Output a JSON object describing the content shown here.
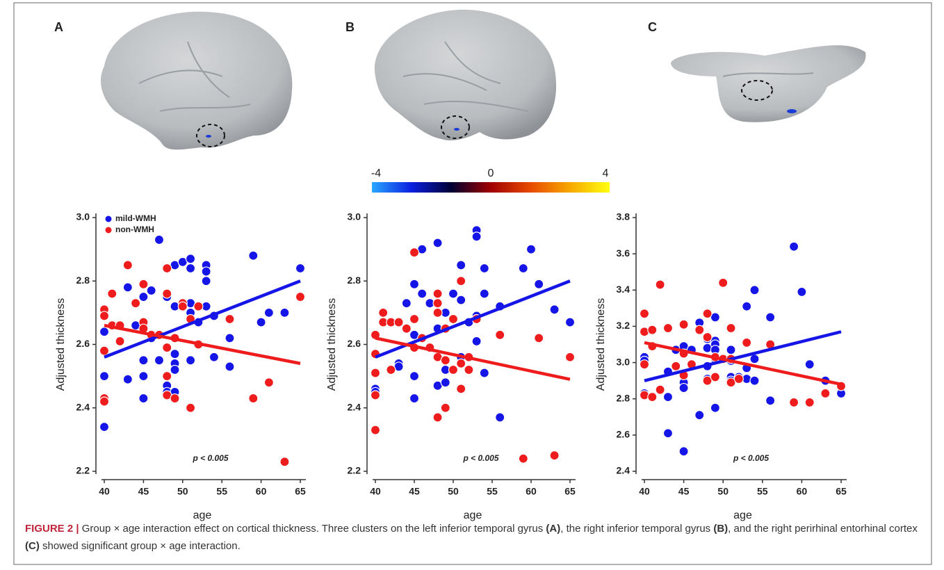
{
  "chart_data": [
    {
      "type": "scatter",
      "panel_label": "A",
      "xlabel": "age",
      "ylabel": "Adjusted thickness",
      "annotation": "p < 0.005",
      "xlim": [
        40,
        65
      ],
      "ylim": [
        2.2,
        3.0
      ],
      "xticks": [
        40,
        45,
        50,
        55,
        60,
        65
      ],
      "yticks": [
        2.2,
        2.4,
        2.6,
        2.8,
        {
          "value": 3,
          "label": "3.0"
        }
      ],
      "legend": "upper left",
      "series": [
        {
          "name": "mild-WMH",
          "color": "#1515e8",
          "x": [
            40,
            40,
            40,
            43,
            43,
            44,
            45,
            45,
            45,
            45,
            46,
            46,
            47,
            47,
            48,
            48,
            48,
            49,
            49,
            49,
            49,
            49,
            49,
            50,
            51,
            51,
            51,
            51,
            51,
            52,
            53,
            53,
            53,
            53,
            54,
            54,
            56,
            56,
            59,
            60,
            61,
            63,
            65
          ],
          "values": [
            2.64,
            2.5,
            2.34,
            2.78,
            2.49,
            2.66,
            2.75,
            2.55,
            2.5,
            2.43,
            2.77,
            2.62,
            2.93,
            2.55,
            2.75,
            2.47,
            2.45,
            2.85,
            2.72,
            2.57,
            2.54,
            2.52,
            2.45,
            2.86,
            2.87,
            2.84,
            2.73,
            2.7,
            2.55,
            2.67,
            2.85,
            2.83,
            2.8,
            2.72,
            2.69,
            2.56,
            2.62,
            2.53,
            2.88,
            2.67,
            2.7,
            2.7,
            2.84
          ],
          "fit": {
            "x": [
              40,
              65
            ],
            "values": [
              2.56,
              2.8
            ]
          }
        },
        {
          "name": "non-WMH",
          "color": "#ee1c1c",
          "x": [
            40,
            40,
            40,
            40,
            40,
            41,
            41,
            42,
            42,
            43,
            44,
            45,
            45,
            45,
            46,
            47,
            48,
            48,
            48,
            48,
            48,
            49,
            49,
            50,
            50,
            51,
            51,
            52,
            52,
            56,
            59,
            61,
            63,
            65
          ],
          "values": [
            2.71,
            2.69,
            2.58,
            2.43,
            2.42,
            2.76,
            2.66,
            2.66,
            2.61,
            2.85,
            2.73,
            2.79,
            2.67,
            2.65,
            2.63,
            2.63,
            2.84,
            2.76,
            2.59,
            2.5,
            2.44,
            2.62,
            2.43,
            2.73,
            2.72,
            2.68,
            2.4,
            2.72,
            2.6,
            2.68,
            2.43,
            2.48,
            2.23,
            2.75
          ],
          "fit": {
            "x": [
              40,
              65
            ],
            "values": [
              2.66,
              2.54
            ]
          }
        }
      ]
    },
    {
      "type": "scatter",
      "panel_label": "B",
      "xlabel": "age",
      "ylabel": "Adjusted thickness",
      "annotation": "p < 0.005",
      "xlim": [
        40,
        65
      ],
      "ylim": [
        2.2,
        3.0
      ],
      "xticks": [
        40,
        45,
        50,
        55,
        60,
        65
      ],
      "yticks": [
        2.2,
        2.4,
        2.6,
        2.8,
        {
          "value": 3,
          "label": "3.0"
        }
      ],
      "series": [
        {
          "color": "#1515e8",
          "x": [
            40,
            40,
            40,
            43,
            43,
            44,
            45,
            45,
            45,
            45,
            46,
            46,
            47,
            48,
            48,
            48,
            49,
            49,
            49,
            49,
            50,
            51,
            51,
            51,
            52,
            53,
            53,
            53,
            53,
            54,
            54,
            54,
            56,
            56,
            59,
            60,
            61,
            63,
            65
          ],
          "values": [
            2.46,
            2.45,
            2.57,
            2.54,
            2.53,
            2.73,
            2.79,
            2.63,
            2.5,
            2.43,
            2.9,
            2.76,
            2.73,
            2.92,
            2.65,
            2.47,
            2.7,
            2.52,
            2.48,
            2.4,
            2.76,
            2.85,
            2.74,
            2.56,
            2.67,
            2.96,
            2.94,
            2.69,
            2.61,
            2.84,
            2.76,
            2.51,
            2.72,
            2.37,
            2.84,
            2.9,
            2.79,
            2.71,
            2.67
          ],
          "fit": {
            "x": [
              40,
              65
            ],
            "values": [
              2.56,
              2.8
            ]
          }
        },
        {
          "color": "#ee1c1c",
          "x": [
            40,
            40,
            40,
            40,
            40,
            41,
            41,
            42,
            42,
            43,
            44,
            45,
            45,
            45,
            46,
            47,
            48,
            48,
            48,
            48,
            48,
            49,
            49,
            49,
            50,
            50,
            51,
            51,
            51,
            52,
            52,
            53,
            56,
            59,
            61,
            63,
            65
          ],
          "values": [
            2.63,
            2.57,
            2.51,
            2.44,
            2.33,
            2.7,
            2.67,
            2.67,
            2.52,
            2.67,
            2.65,
            2.89,
            2.68,
            2.59,
            2.62,
            2.59,
            2.76,
            2.73,
            2.7,
            2.56,
            2.37,
            2.65,
            2.55,
            2.4,
            2.68,
            2.52,
            2.8,
            2.54,
            2.46,
            2.56,
            2.52,
            2.68,
            2.63,
            2.24,
            2.62,
            2.25,
            2.56
          ],
          "fit": {
            "x": [
              40,
              65
            ],
            "values": [
              2.62,
              2.49
            ]
          }
        }
      ]
    },
    {
      "type": "scatter",
      "panel_label": "C",
      "xlabel": "age",
      "ylabel": "Adjusted thickness",
      "annotation": "p < 0.005",
      "xlim": [
        40,
        65
      ],
      "ylim": [
        2.4,
        3.8
      ],
      "xticks": [
        40,
        45,
        50,
        55,
        60,
        65
      ],
      "yticks": [
        2.4,
        2.6,
        2.8,
        {
          "value": 3,
          "label": "3.0"
        },
        3.2,
        3.4,
        3.6,
        3.8
      ],
      "series": [
        {
          "color": "#1515e8",
          "x": [
            40,
            40,
            40,
            43,
            43,
            43,
            44,
            45,
            45,
            45,
            45,
            46,
            46,
            47,
            47,
            48,
            48,
            48,
            48,
            49,
            49,
            49,
            49,
            49,
            49,
            49,
            51,
            51,
            51,
            51,
            52,
            53,
            53,
            53,
            53,
            54,
            54,
            54,
            56,
            56,
            59,
            60,
            61,
            63,
            65
          ],
          "values": [
            3.03,
            3.01,
            2.83,
            2.95,
            2.81,
            2.61,
            3.07,
            3.09,
            2.89,
            2.86,
            2.51,
            3.07,
            2.99,
            3.22,
            2.71,
            3.13,
            3.08,
            2.98,
            2.91,
            3.25,
            3.12,
            3.1,
            3.07,
            3.02,
            2.92,
            2.75,
            3.07,
            3.01,
            2.92,
            2.9,
            2.92,
            3.31,
            3.11,
            2.97,
            2.91,
            3.4,
            3.02,
            2.9,
            3.25,
            2.79,
            3.64,
            3.39,
            2.99,
            2.9,
            2.83
          ],
          "fit": {
            "x": [
              40,
              65
            ],
            "values": [
              2.9,
              3.17
            ]
          }
        },
        {
          "color": "#ee1c1c",
          "x": [
            40,
            40,
            40,
            40,
            41,
            41,
            41,
            42,
            42,
            43,
            44,
            45,
            45,
            45,
            46,
            47,
            48,
            48,
            48,
            49,
            49,
            50,
            50,
            51,
            51,
            51,
            52,
            53,
            56,
            59,
            61,
            63,
            65
          ],
          "values": [
            3.27,
            3.17,
            2.99,
            2.82,
            3.18,
            3.09,
            2.81,
            3.43,
            2.85,
            3.19,
            2.98,
            3.21,
            3.05,
            2.93,
            2.99,
            3.18,
            3.27,
            3.14,
            2.9,
            3.03,
            2.92,
            3.44,
            3.02,
            3.19,
            3.02,
            2.89,
            2.91,
            3.11,
            3.1,
            2.78,
            2.78,
            2.83,
            2.87
          ],
          "fit": {
            "x": [
              40,
              65
            ],
            "values": [
              3.11,
              2.88
            ]
          }
        }
      ]
    }
  ],
  "colorbar": {
    "range": [
      -4,
      4
    ],
    "ticks": [
      -4,
      0,
      4
    ],
    "colors": [
      "#2aa7ff",
      "#0a1fe0",
      "#000033",
      "#a00000",
      "#e84a00",
      "#f7a800",
      "#ffff10"
    ]
  },
  "caption": {
    "label": "FIGURE 2 |",
    "segments": [
      {
        "text": " Group × age interaction effect on cortical thickness. Three clusters on the left inferior temporal gyrus "
      },
      {
        "text": "(A)",
        "bold": true
      },
      {
        "text": ", the right inferior temporal gyrus "
      },
      {
        "text": "(B)",
        "bold": true
      },
      {
        "text": ", and the right perirhinal entorhinal cortex "
      },
      {
        "text": "(C)",
        "bold": true
      },
      {
        "text": " showed significant group × age interaction."
      }
    ]
  }
}
